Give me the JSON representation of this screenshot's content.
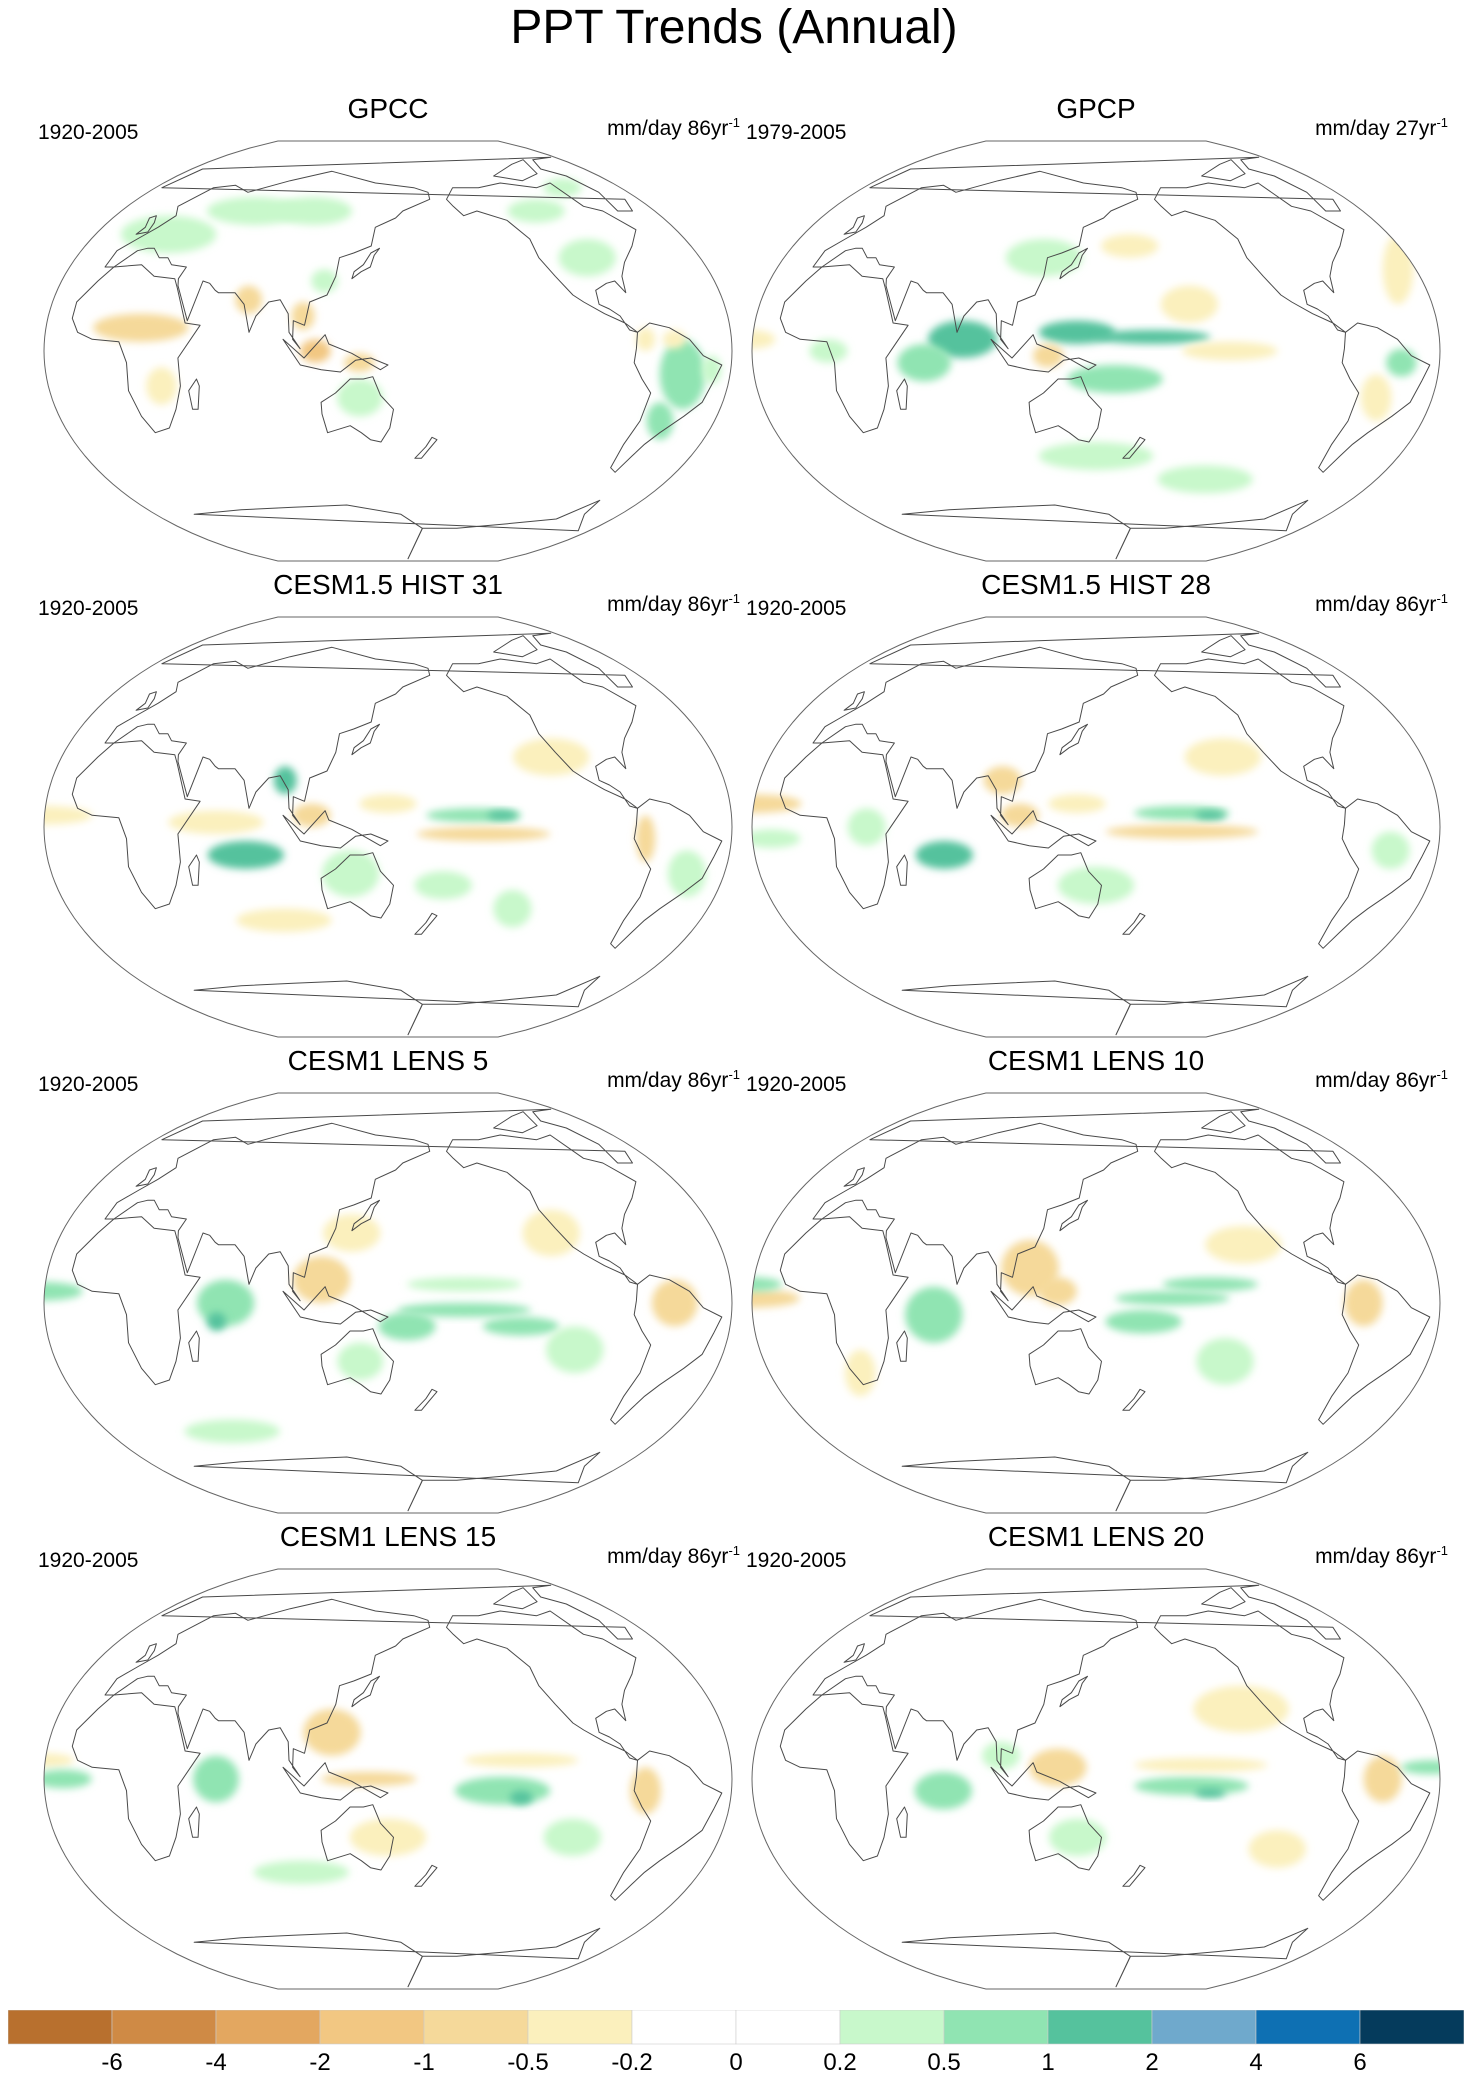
{
  "title": "PPT Trends (Annual)",
  "panels": [
    {
      "title": "GPCC",
      "period": "1920-2005",
      "units_base": "mm/day 86yr",
      "units_exp": "-1",
      "features": [
        {
          "lon": -55,
          "lat": -10,
          "sx": 12,
          "sy": 15,
          "v": 0.6
        },
        {
          "lon": -60,
          "lat": -30,
          "sx": 7,
          "sy": 8,
          "v": 0.8
        },
        {
          "lon": -75,
          "lat": 5,
          "sx": 5,
          "sy": 5,
          "v": -0.5
        },
        {
          "lon": -60,
          "lat": 5,
          "sx": 6,
          "sy": 4,
          "v": -0.4
        },
        {
          "lon": -40,
          "lat": -8,
          "sx": 5,
          "sy": 6,
          "v": 0.3
        },
        {
          "lon": 20,
          "lat": 10,
          "sx": 25,
          "sy": 6,
          "v": -0.6
        },
        {
          "lon": 30,
          "lat": -15,
          "sx": 8,
          "sy": 8,
          "v": -0.4
        },
        {
          "lon": 15,
          "lat": 50,
          "sx": 25,
          "sy": 8,
          "v": 0.4
        },
        {
          "lon": 60,
          "lat": 60,
          "sx": 25,
          "sy": 6,
          "v": 0.4
        },
        {
          "lon": 100,
          "lat": 60,
          "sx": 20,
          "sy": 6,
          "v": 0.3
        },
        {
          "lon": 75,
          "lat": 22,
          "sx": 7,
          "sy": 6,
          "v": -0.6
        },
        {
          "lon": 105,
          "lat": 15,
          "sx": 6,
          "sy": 6,
          "v": -0.8
        },
        {
          "lon": 112,
          "lat": 0,
          "sx": 8,
          "sy": 5,
          "v": -1.2
        },
        {
          "lon": 135,
          "lat": -5,
          "sx": 8,
          "sy": 4,
          "v": -0.8
        },
        {
          "lon": 115,
          "lat": 30,
          "sx": 7,
          "sy": 5,
          "v": 0.4
        },
        {
          "lon": 135,
          "lat": -20,
          "sx": 12,
          "sy": 8,
          "v": 0.3
        },
        {
          "lon": -95,
          "lat": 40,
          "sx": 15,
          "sy": 8,
          "v": 0.4
        },
        {
          "lon": -110,
          "lat": 60,
          "sx": 15,
          "sy": 5,
          "v": 0.3
        },
        {
          "lon": -75,
          "lat": 70,
          "sx": 10,
          "sy": 4,
          "v": 0.4
        }
      ]
    },
    {
      "title": "GPCP",
      "period": "1979-2005",
      "units_base": "mm/day 27yr",
      "units_exp": "-1",
      "features": [
        {
          "lon": 80,
          "lat": 5,
          "sx": 18,
          "sy": 8,
          "v": 1.2
        },
        {
          "lon": 60,
          "lat": -5,
          "sx": 14,
          "sy": 8,
          "v": 0.8
        },
        {
          "lon": 140,
          "lat": 8,
          "sx": 20,
          "sy": 5,
          "v": 1.3
        },
        {
          "lon": 180,
          "lat": 6,
          "sx": 30,
          "sy": 3,
          "v": 1.0
        },
        {
          "lon": 160,
          "lat": -12,
          "sx": 25,
          "sy": 6,
          "v": 0.7
        },
        {
          "lon": 125,
          "lat": -2,
          "sx": 8,
          "sy": 5,
          "v": -0.6
        },
        {
          "lon": -140,
          "lat": 0,
          "sx": 25,
          "sy": 4,
          "v": -0.4
        },
        {
          "lon": -160,
          "lat": 20,
          "sx": 15,
          "sy": 8,
          "v": -0.3
        },
        {
          "lon": -40,
          "lat": 35,
          "sx": 8,
          "sy": 15,
          "v": -0.4
        },
        {
          "lon": -30,
          "lat": 5,
          "sx": 12,
          "sy": 4,
          "v": -0.5
        },
        {
          "lon": -60,
          "lat": -20,
          "sx": 8,
          "sy": 10,
          "v": -0.4
        },
        {
          "lon": -50,
          "lat": -5,
          "sx": 8,
          "sy": 6,
          "v": 0.5
        },
        {
          "lon": 150,
          "lat": -45,
          "sx": 30,
          "sy": 6,
          "v": 0.4
        },
        {
          "lon": -140,
          "lat": -55,
          "sx": 25,
          "sy": 6,
          "v": 0.4
        },
        {
          "lon": 10,
          "lat": 0,
          "sx": 10,
          "sy": 5,
          "v": 0.3
        },
        {
          "lon": 120,
          "lat": 40,
          "sx": 20,
          "sy": 8,
          "v": 0.3
        },
        {
          "lon": 170,
          "lat": 45,
          "sx": 15,
          "sy": 5,
          "v": -0.3
        }
      ]
    },
    {
      "title": "CESM1.5 HIST 31",
      "period": "1920-2005",
      "units_base": "mm/day 86yr",
      "units_exp": "-1",
      "features": [
        {
          "lon": -165,
          "lat": 5,
          "sx": 25,
          "sy": 3,
          "v": 0.9
        },
        {
          "lon": -150,
          "lat": 5,
          "sx": 8,
          "sy": 2,
          "v": 1.4
        },
        {
          "lon": -160,
          "lat": -3,
          "sx": 35,
          "sy": 3,
          "v": -0.6
        },
        {
          "lon": 150,
          "lat": 10,
          "sx": 15,
          "sy": 4,
          "v": -0.5
        },
        {
          "lon": 75,
          "lat": -12,
          "sx": 20,
          "sy": 6,
          "v": 1.2
        },
        {
          "lon": 60,
          "lat": 2,
          "sx": 25,
          "sy": 5,
          "v": -0.5
        },
        {
          "lon": 110,
          "lat": 5,
          "sx": 10,
          "sy": 5,
          "v": -0.8
        },
        {
          "lon": 95,
          "lat": 20,
          "sx": 6,
          "sy": 6,
          "v": 1.0
        },
        {
          "lon": -75,
          "lat": -5,
          "sx": 5,
          "sy": 10,
          "v": -0.8
        },
        {
          "lon": -30,
          "lat": 5,
          "sx": 25,
          "sy": 4,
          "v": -0.5
        },
        {
          "lon": -50,
          "lat": -20,
          "sx": 10,
          "sy": 10,
          "v": 0.4
        },
        {
          "lon": 130,
          "lat": -20,
          "sx": 15,
          "sy": 10,
          "v": 0.4
        },
        {
          "lon": 90,
          "lat": -40,
          "sx": 25,
          "sy": 5,
          "v": -0.3
        },
        {
          "lon": -120,
          "lat": 30,
          "sx": 20,
          "sy": 8,
          "v": -0.3
        },
        {
          "lon": 180,
          "lat": -25,
          "sx": 15,
          "sy": 6,
          "v": 0.3
        },
        {
          "lon": -140,
          "lat": -35,
          "sx": 10,
          "sy": 8,
          "v": 0.3
        }
      ]
    },
    {
      "title": "CESM1.5 HIST 28",
      "period": "1920-2005",
      "units_base": "mm/day 86yr",
      "units_exp": "-1",
      "features": [
        {
          "lon": -165,
          "lat": 6,
          "sx": 25,
          "sy": 3,
          "v": 0.9
        },
        {
          "lon": -150,
          "lat": 5,
          "sx": 8,
          "sy": 2,
          "v": 1.4
        },
        {
          "lon": -165,
          "lat": -2,
          "sx": 40,
          "sy": 3,
          "v": -0.6
        },
        {
          "lon": 140,
          "lat": 10,
          "sx": 15,
          "sy": 4,
          "v": -0.5
        },
        {
          "lon": 70,
          "lat": -12,
          "sx": 15,
          "sy": 6,
          "v": 1.2
        },
        {
          "lon": 110,
          "lat": 5,
          "sx": 10,
          "sy": 5,
          "v": -0.8
        },
        {
          "lon": 100,
          "lat": 20,
          "sx": 10,
          "sy": 6,
          "v": -0.6
        },
        {
          "lon": -30,
          "lat": 10,
          "sx": 25,
          "sy": 4,
          "v": -0.6
        },
        {
          "lon": -55,
          "lat": -10,
          "sx": 10,
          "sy": 8,
          "v": 0.4
        },
        {
          "lon": -20,
          "lat": -5,
          "sx": 15,
          "sy": 4,
          "v": 0.3
        },
        {
          "lon": -140,
          "lat": 30,
          "sx": 20,
          "sy": 8,
          "v": -0.3
        },
        {
          "lon": 150,
          "lat": -25,
          "sx": 20,
          "sy": 8,
          "v": 0.4
        },
        {
          "lon": 30,
          "lat": 0,
          "sx": 10,
          "sy": 8,
          "v": 0.3
        }
      ]
    },
    {
      "title": "CESM1 LENS 5",
      "period": "1920-2005",
      "units_base": "mm/day 86yr",
      "units_exp": "-1",
      "features": [
        {
          "lon": -170,
          "lat": -3,
          "sx": 35,
          "sy": 3,
          "v": 0.7
        },
        {
          "lon": 160,
          "lat": -10,
          "sx": 15,
          "sy": 6,
          "v": 0.5
        },
        {
          "lon": -140,
          "lat": -10,
          "sx": 20,
          "sy": 4,
          "v": 0.5
        },
        {
          "lon": -170,
          "lat": 8,
          "sx": 30,
          "sy": 3,
          "v": 0.4
        },
        {
          "lon": 115,
          "lat": 10,
          "sx": 15,
          "sy": 10,
          "v": -0.7
        },
        {
          "lon": 130,
          "lat": 30,
          "sx": 15,
          "sy": 8,
          "v": -0.5
        },
        {
          "lon": -60,
          "lat": 0,
          "sx": 12,
          "sy": 10,
          "v": -0.8
        },
        {
          "lon": -30,
          "lat": 5,
          "sx": 20,
          "sy": 4,
          "v": 0.6
        },
        {
          "lon": 65,
          "lat": 0,
          "sx": 15,
          "sy": 10,
          "v": 0.6
        },
        {
          "lon": 60,
          "lat": -8,
          "sx": 5,
          "sy": 4,
          "v": 1.3
        },
        {
          "lon": 135,
          "lat": -25,
          "sx": 12,
          "sy": 8,
          "v": 0.4
        },
        {
          "lon": -120,
          "lat": 30,
          "sx": 15,
          "sy": 10,
          "v": -0.3
        },
        {
          "lon": 50,
          "lat": -55,
          "sx": 25,
          "sy": 5,
          "v": 0.4
        },
        {
          "lon": -110,
          "lat": -20,
          "sx": 15,
          "sy": 10,
          "v": 0.3
        }
      ]
    },
    {
      "title": "CESM1 LENS 10",
      "period": "1920-2005",
      "units_base": "mm/day 86yr",
      "units_exp": "-1",
      "features": [
        {
          "lon": -170,
          "lat": 2,
          "sx": 30,
          "sy": 3,
          "v": 0.8
        },
        {
          "lon": -150,
          "lat": 8,
          "sx": 25,
          "sy": 3,
          "v": 0.6
        },
        {
          "lon": 175,
          "lat": -8,
          "sx": 20,
          "sy": 5,
          "v": 0.6
        },
        {
          "lon": 115,
          "lat": 15,
          "sx": 15,
          "sy": 12,
          "v": -0.7
        },
        {
          "lon": 130,
          "lat": 5,
          "sx": 10,
          "sy": 6,
          "v": -0.6
        },
        {
          "lon": -70,
          "lat": 0,
          "sx": 10,
          "sy": 10,
          "v": -0.8
        },
        {
          "lon": -30,
          "lat": 2,
          "sx": 25,
          "sy": 4,
          "v": -0.6
        },
        {
          "lon": -30,
          "lat": 8,
          "sx": 15,
          "sy": 3,
          "v": 0.5
        },
        {
          "lon": 65,
          "lat": -5,
          "sx": 15,
          "sy": 12,
          "v": 0.8
        },
        {
          "lon": 20,
          "lat": -30,
          "sx": 8,
          "sy": 10,
          "v": -0.3
        },
        {
          "lon": -140,
          "lat": -25,
          "sx": 15,
          "sy": 10,
          "v": 0.3
        },
        {
          "lon": -130,
          "lat": 25,
          "sx": 20,
          "sy": 8,
          "v": -0.3
        }
      ]
    },
    {
      "title": "CESM1 LENS 15",
      "period": "1920-2005",
      "units_base": "mm/day 86yr",
      "units_exp": "-1",
      "features": [
        {
          "lon": -150,
          "lat": -5,
          "sx": 25,
          "sy": 6,
          "v": 0.8
        },
        {
          "lon": -140,
          "lat": -8,
          "sx": 6,
          "sy": 3,
          "v": 1.3
        },
        {
          "lon": -140,
          "lat": 8,
          "sx": 30,
          "sy": 3,
          "v": -0.5
        },
        {
          "lon": 140,
          "lat": 0,
          "sx": 25,
          "sy": 3,
          "v": -0.6
        },
        {
          "lon": 120,
          "lat": 20,
          "sx": 15,
          "sy": 10,
          "v": -0.7
        },
        {
          "lon": 60,
          "lat": 0,
          "sx": 12,
          "sy": 10,
          "v": 0.9
        },
        {
          "lon": -75,
          "lat": -5,
          "sx": 8,
          "sy": 10,
          "v": -0.9
        },
        {
          "lon": -30,
          "lat": 8,
          "sx": 15,
          "sy": 3,
          "v": -0.4
        },
        {
          "lon": -20,
          "lat": 0,
          "sx": 15,
          "sy": 4,
          "v": 0.5
        },
        {
          "lon": 150,
          "lat": -25,
          "sx": 20,
          "sy": 8,
          "v": -0.4
        },
        {
          "lon": -110,
          "lat": -25,
          "sx": 15,
          "sy": 8,
          "v": 0.3
        },
        {
          "lon": 100,
          "lat": -40,
          "sx": 25,
          "sy": 5,
          "v": 0.3
        }
      ]
    },
    {
      "title": "CESM1 LENS 20",
      "period": "1920-2005",
      "units_base": "mm/day 86yr",
      "units_exp": "-1",
      "features": [
        {
          "lon": -160,
          "lat": -3,
          "sx": 30,
          "sy": 4,
          "v": 0.7
        },
        {
          "lon": -150,
          "lat": -6,
          "sx": 8,
          "sy": 2,
          "v": 1.3
        },
        {
          "lon": -155,
          "lat": 6,
          "sx": 35,
          "sy": 3,
          "v": -0.5
        },
        {
          "lon": 130,
          "lat": 5,
          "sx": 15,
          "sy": 8,
          "v": -0.6
        },
        {
          "lon": 70,
          "lat": -5,
          "sx": 15,
          "sy": 8,
          "v": 0.7
        },
        {
          "lon": 100,
          "lat": 10,
          "sx": 10,
          "sy": 6,
          "v": 0.4
        },
        {
          "lon": -60,
          "lat": 0,
          "sx": 10,
          "sy": 10,
          "v": -0.7
        },
        {
          "lon": -35,
          "lat": 5,
          "sx": 15,
          "sy": 3,
          "v": 0.5
        },
        {
          "lon": -130,
          "lat": 30,
          "sx": 25,
          "sy": 10,
          "v": -0.3
        },
        {
          "lon": 140,
          "lat": -25,
          "sx": 15,
          "sy": 8,
          "v": 0.3
        },
        {
          "lon": -110,
          "lat": -30,
          "sx": 15,
          "sy": 8,
          "v": -0.3
        }
      ]
    }
  ],
  "colorbar": {
    "colors": [
      "#b8702e",
      "#cf8a45",
      "#e3a760",
      "#f2c782",
      "#f5d99a",
      "#fbf0bd",
      "#ffffff",
      "#ffffff",
      "#c8f8cb",
      "#90e4b2",
      "#55c29d",
      "#6fa9cc",
      "#0e70b3",
      "#053b5c"
    ],
    "labels": [
      "-6",
      "-4",
      "-2",
      "-1",
      "-0.5",
      "-0.2",
      "0",
      "0.2",
      "0.5",
      "1",
      "2",
      "4",
      "6"
    ],
    "levels": [
      -6,
      -4,
      -2,
      -1,
      -0.5,
      -0.2,
      0,
      0.2,
      0.5,
      1,
      2,
      4,
      6
    ]
  }
}
